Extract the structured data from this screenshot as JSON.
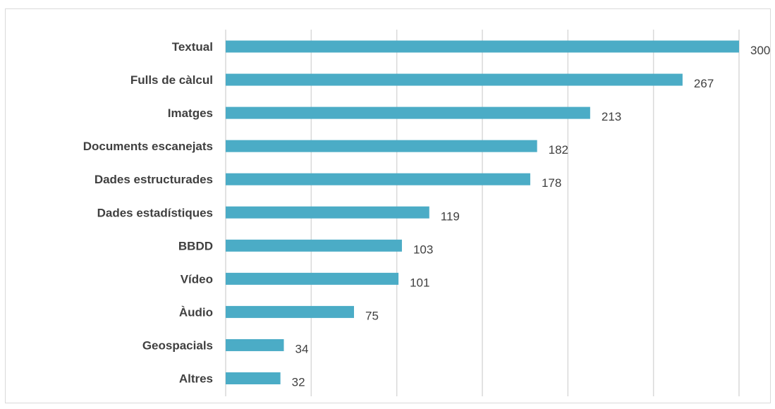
{
  "chart_data": {
    "type": "bar",
    "orientation": "horizontal",
    "categories": [
      "Textual",
      "Fulls de càlcul",
      "Imatges",
      "Documents escanejats ",
      "Dades estructurades",
      "Dades estadístiques ",
      "BBDD",
      "Vídeo",
      "Àudio",
      "Geospacials",
      "Altres"
    ],
    "values": [
      300,
      267,
      213,
      182,
      178,
      119,
      103,
      101,
      75,
      34,
      32
    ],
    "xlim": [
      0,
      300
    ],
    "grid": true,
    "data_labels": true,
    "bar_color": "#4bacc6",
    "title": "",
    "xlabel": "",
    "ylabel": ""
  }
}
